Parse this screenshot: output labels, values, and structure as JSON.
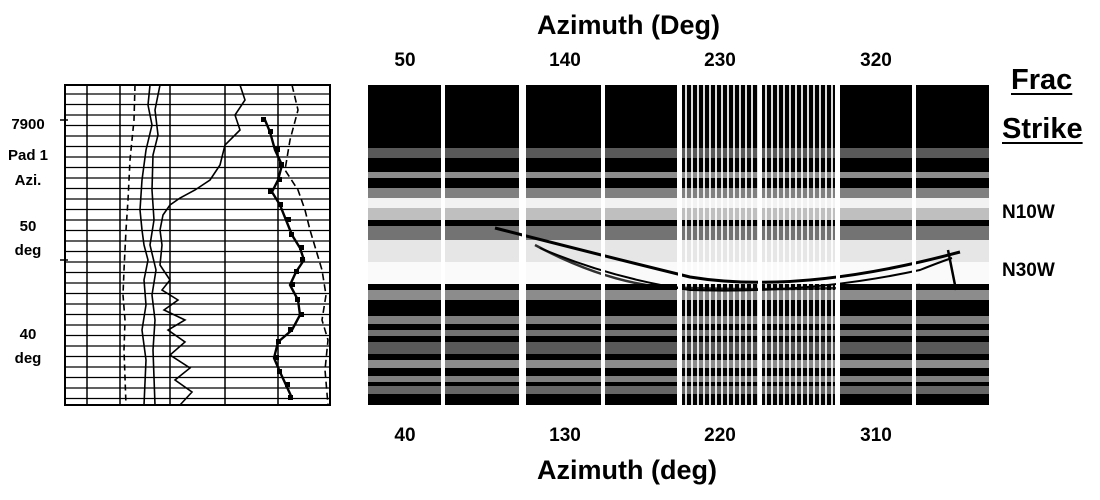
{
  "top_axis": {
    "title": "Azimuth (Deg)",
    "ticks": [
      "50",
      "140",
      "230",
      "320"
    ]
  },
  "bottom_axis": {
    "title": "Azimuth (deg)",
    "ticks": [
      "40",
      "130",
      "220",
      "310"
    ]
  },
  "depth_labels": {
    "depth": "7900",
    "pad_line1": "Pad 1",
    "pad_line2": "Azi.",
    "upper_value": "50",
    "upper_unit": "deg",
    "lower_value": "40",
    "lower_unit": "deg"
  },
  "frac_strike": {
    "title_line1": "Frac",
    "title_line2": "Strike",
    "upper": "N10W",
    "lower": "N30W"
  },
  "colors": {
    "ink": "#000000",
    "background": "#ffffff"
  }
}
